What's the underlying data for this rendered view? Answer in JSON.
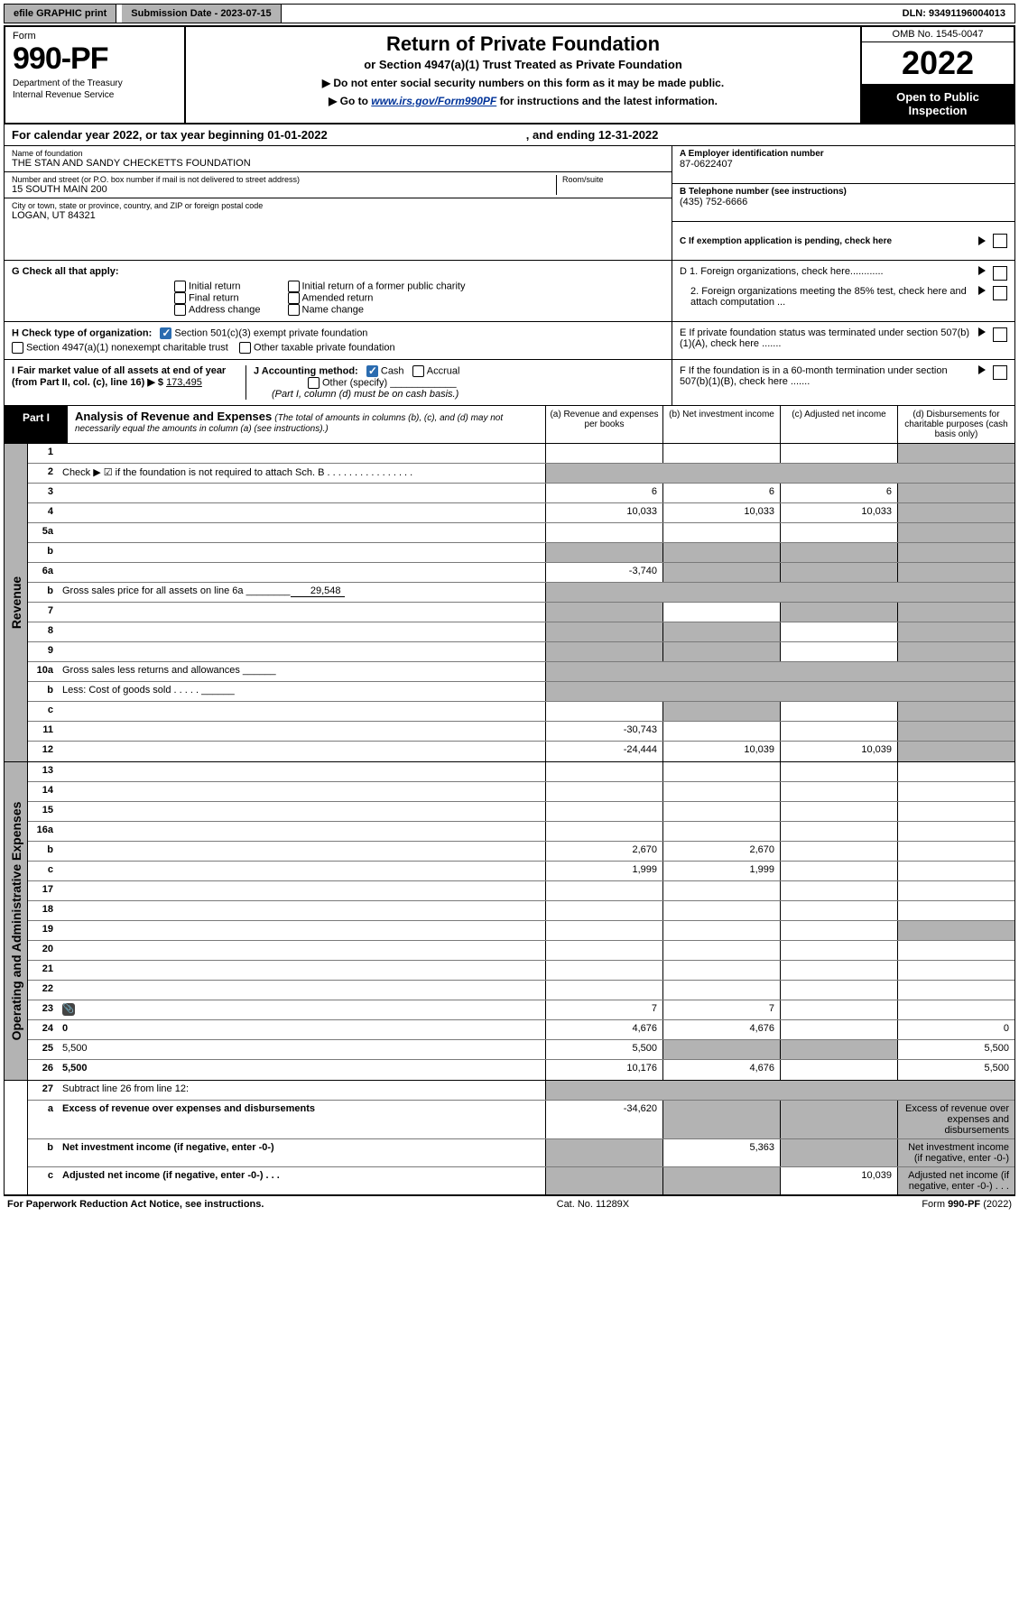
{
  "topbar": {
    "efile": "efile GRAPHIC print",
    "submission": "Submission Date - 2023-07-15",
    "dln": "DLN: 93491196004013"
  },
  "header": {
    "form_label": "Form",
    "form_number": "990-PF",
    "dept1": "Department of the Treasury",
    "dept2": "Internal Revenue Service",
    "title": "Return of Private Foundation",
    "subtitle": "or Section 4947(a)(1) Trust Treated as Private Foundation",
    "note1": "▶ Do not enter social security numbers on this form as it may be made public.",
    "note2_pre": "▶ Go to ",
    "note2_link": "www.irs.gov/Form990PF",
    "note2_post": " for instructions and the latest information.",
    "omb": "OMB No. 1545-0047",
    "year": "2022",
    "open": "Open to Public Inspection"
  },
  "cal": {
    "text": "For calendar year 2022, or tax year beginning 01-01-2022",
    "ending": ", and ending 12-31-2022"
  },
  "id": {
    "name_lbl": "Name of foundation",
    "name": "THE STAN AND SANDY CHECKETTS FOUNDATION",
    "addr_lbl": "Number and street (or P.O. box number if mail is not delivered to street address)",
    "addr": "15 SOUTH MAIN 200",
    "room_lbl": "Room/suite",
    "city_lbl": "City or town, state or province, country, and ZIP or foreign postal code",
    "city": "LOGAN, UT  84321",
    "ein_lbl": "A Employer identification number",
    "ein": "87-0622407",
    "tel_lbl": "B Telephone number (see instructions)",
    "tel": "(435) 752-6666",
    "c_lbl": "C If exemption application is pending, check here"
  },
  "g": {
    "label": "G Check all that apply:",
    "opts": [
      "Initial return",
      "Final return",
      "Address change",
      "Initial return of a former public charity",
      "Amended return",
      "Name change"
    ]
  },
  "h": {
    "label": "H Check type of organization:",
    "o1": "Section 501(c)(3) exempt private foundation",
    "o2": "Section 4947(a)(1) nonexempt charitable trust",
    "o3": "Other taxable private foundation"
  },
  "i": {
    "label": "I Fair market value of all assets at end of year (from Part II, col. (c), line 16) ▶ $",
    "value": "173,495"
  },
  "j": {
    "label": "J Accounting method:",
    "o1": "Cash",
    "o2": "Accrual",
    "o3": "Other (specify)",
    "note": "(Part I, column (d) must be on cash basis.)"
  },
  "right_checks": {
    "d1": "D 1. Foreign organizations, check here............",
    "d2": "2. Foreign organizations meeting the 85% test, check here and attach computation ...",
    "e": "E  If private foundation status was terminated under section 507(b)(1)(A), check here .......",
    "f": "F  If the foundation is in a 60-month termination under section 507(b)(1)(B), check here ......."
  },
  "part1": {
    "tag": "Part I",
    "title": "Analysis of Revenue and Expenses",
    "note": " (The total of amounts in columns (b), (c), and (d) may not necessarily equal the amounts in column (a) (see instructions).)",
    "cols": {
      "a": "(a)  Revenue and expenses per books",
      "b": "(b)  Net investment income",
      "c": "(c)  Adjusted net income",
      "d": "(d)  Disbursements for charitable purposes (cash basis only)"
    }
  },
  "side": {
    "rev": "Revenue",
    "exp": "Operating and Administrative Expenses"
  },
  "rows": [
    {
      "n": "1",
      "d": "",
      "a": "",
      "b": "",
      "c": "",
      "shade_d": true
    },
    {
      "n": "2",
      "d": "Check ▶ ☑ if the foundation is not required to attach Sch. B   .  .  .  .  .  .  .  .  .  .  .  .  .  .  .  .",
      "nocols": true
    },
    {
      "n": "3",
      "d": "",
      "a": "6",
      "b": "6",
      "c": "6",
      "shade_d": true
    },
    {
      "n": "4",
      "d": "",
      "a": "10,033",
      "b": "10,033",
      "c": "10,033",
      "shade_d": true
    },
    {
      "n": "5a",
      "d": "",
      "a": "",
      "b": "",
      "c": "",
      "shade_d": true
    },
    {
      "n": "b",
      "d": "",
      "a": "",
      "b": "",
      "c": "",
      "shade_abcd": true
    },
    {
      "n": "6a",
      "d": "",
      "a": "-3,740",
      "b": "",
      "c": "",
      "shade_bcd": true
    },
    {
      "n": "b",
      "d": "Gross sales price for all assets on line 6a ________",
      "inline": "29,548",
      "shade_all": true
    },
    {
      "n": "7",
      "d": "",
      "a": "",
      "b": "",
      "c": "",
      "shade_a": true,
      "shade_cd": true
    },
    {
      "n": "8",
      "d": "",
      "a": "",
      "b": "",
      "c": "",
      "shade_ab": true,
      "shade_d": true
    },
    {
      "n": "9",
      "d": "",
      "a": "",
      "b": "",
      "c": "",
      "shade_ab": true,
      "shade_d": true
    },
    {
      "n": "10a",
      "d": "Gross sales less returns and allowances  ______",
      "shade_all": true
    },
    {
      "n": "b",
      "d": "Less: Cost of goods sold   .  .  .  .  .  ______",
      "shade_all": true
    },
    {
      "n": "c",
      "d": "",
      "a": "",
      "b": "",
      "c": "",
      "shade_b": true,
      "shade_d": true
    },
    {
      "n": "11",
      "d": "",
      "a": "-30,743",
      "b": "",
      "c": "",
      "shade_d": true
    },
    {
      "n": "12",
      "d": "",
      "bold": true,
      "a": "-24,444",
      "b": "10,039",
      "c": "10,039",
      "shade_d": true
    }
  ],
  "exp_rows": [
    {
      "n": "13",
      "d": "",
      "a": "",
      "b": "",
      "c": ""
    },
    {
      "n": "14",
      "d": "",
      "a": "",
      "b": "",
      "c": ""
    },
    {
      "n": "15",
      "d": "",
      "a": "",
      "b": "",
      "c": ""
    },
    {
      "n": "16a",
      "d": "",
      "a": "",
      "b": "",
      "c": ""
    },
    {
      "n": "b",
      "d": "",
      "a": "2,670",
      "b": "2,670",
      "c": ""
    },
    {
      "n": "c",
      "d": "",
      "a": "1,999",
      "b": "1,999",
      "c": ""
    },
    {
      "n": "17",
      "d": "",
      "a": "",
      "b": "",
      "c": ""
    },
    {
      "n": "18",
      "d": "",
      "a": "",
      "b": "",
      "c": ""
    },
    {
      "n": "19",
      "d": "",
      "a": "",
      "b": "",
      "c": "",
      "shade_d": true
    },
    {
      "n": "20",
      "d": "",
      "a": "",
      "b": "",
      "c": ""
    },
    {
      "n": "21",
      "d": "",
      "a": "",
      "b": "",
      "c": ""
    },
    {
      "n": "22",
      "d": "",
      "a": "",
      "b": "",
      "c": ""
    },
    {
      "n": "23",
      "d": "",
      "icon": true,
      "a": "7",
      "b": "7",
      "c": ""
    },
    {
      "n": "24",
      "d": "0",
      "bold": true,
      "a": "4,676",
      "b": "4,676",
      "c": ""
    },
    {
      "n": "25",
      "d": "5,500",
      "a": "5,500",
      "b": "",
      "c": "",
      "shade_bc": true
    },
    {
      "n": "26",
      "d": "5,500",
      "bold": true,
      "a": "10,176",
      "b": "4,676",
      "c": ""
    }
  ],
  "btm_rows": [
    {
      "n": "27",
      "d": "Subtract line 26 from line 12:",
      "shade_all": true
    },
    {
      "n": "a",
      "d": "Excess of revenue over expenses and disbursements",
      "bold": true,
      "a": "-34,620",
      "shade_bcd": true
    },
    {
      "n": "b",
      "d": "Net investment income (if negative, enter -0-)",
      "bold": true,
      "b": "5,363",
      "shade_a": true,
      "shade_cd": true
    },
    {
      "n": "c",
      "d": "Adjusted net income (if negative, enter -0-)   .  .  .",
      "bold": true,
      "c": "10,039",
      "shade_ab": true,
      "shade_d": true
    }
  ],
  "footer": {
    "left": "For Paperwork Reduction Act Notice, see instructions.",
    "mid": "Cat. No. 11289X",
    "right": "Form 990-PF (2022)"
  }
}
